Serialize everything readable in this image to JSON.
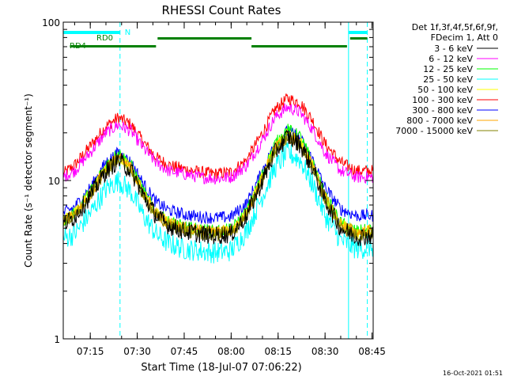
{
  "chart_data": {
    "type": "line",
    "title": "RHESSI Count Rates",
    "xlabel": "Start Time (18-Jul-07 07:06:22)",
    "ylabel": "Count Rate (s⁻¹ detector segment⁻¹)",
    "y_scale": "log",
    "ylim": [
      1,
      100
    ],
    "xlim": [
      "07:06:22",
      "08:45:22"
    ],
    "x_ticks": [
      "07:15",
      "07:30",
      "07:45",
      "08:00",
      "08:15",
      "08:30",
      "08:45"
    ],
    "y_ticks": [
      "1",
      "10",
      "100"
    ],
    "grid": false,
    "legend_position": "right",
    "legend_header": [
      "Det 1f,3f,4f,5f,6f,9f,",
      "FDecim 1, Att 0"
    ],
    "timestamp": "16-Oct-2021 01:51",
    "markers": {
      "night_label": "N",
      "rd0_label": "RD0",
      "rd4_label": "RD4",
      "solid_lines": [
        "07:06:22",
        "08:37:30"
      ],
      "dashed_lines": [
        "07:24:30",
        "08:43:30"
      ],
      "night_segments": [
        [
          "07:06:22",
          "07:24:30"
        ],
        [
          "08:37:30",
          "08:43:30"
        ]
      ],
      "rd0_segments": [
        [
          "07:36:30",
          "08:06:30"
        ],
        [
          "08:38:00",
          "08:43:30"
        ]
      ],
      "rd4_segments": [
        [
          "07:08:30",
          "07:36:00"
        ],
        [
          "08:06:30",
          "08:37:00"
        ]
      ]
    },
    "x": [
      "07:06:22",
      "07:10",
      "07:15",
      "07:20",
      "07:24",
      "07:28",
      "07:32",
      "07:36",
      "07:40",
      "07:45",
      "07:50",
      "07:55",
      "08:00",
      "08:05",
      "08:10",
      "08:14",
      "08:18",
      "08:22",
      "08:26",
      "08:30",
      "08:35",
      "08:40",
      "08:45"
    ],
    "series": [
      {
        "name": "3 - 6 keV",
        "color": "#000000",
        "values": [
          5.3,
          5.9,
          8.0,
          11.5,
          13.5,
          11.5,
          8.0,
          6.0,
          5.2,
          4.8,
          4.6,
          4.5,
          4.6,
          6.0,
          10.0,
          15.0,
          19.0,
          17.0,
          12.0,
          7.5,
          5.0,
          4.4,
          4.5
        ]
      },
      {
        "name": "6 - 12 keV",
        "color": "#ff00ff",
        "values": [
          10.5,
          11.5,
          15.0,
          20.0,
          22.5,
          20.5,
          16.0,
          13.0,
          11.5,
          11.0,
          10.5,
          10.3,
          10.5,
          12.5,
          18.0,
          25.0,
          29.0,
          27.0,
          21.0,
          15.0,
          11.5,
          10.5,
          10.5
        ]
      },
      {
        "name": "12 - 25 keV",
        "color": "#00ff00",
        "values": [
          5.6,
          6.2,
          8.5,
          12.5,
          15.0,
          12.5,
          8.5,
          6.3,
          5.5,
          5.1,
          4.9,
          4.8,
          4.9,
          6.4,
          11.0,
          17.0,
          21.0,
          19.0,
          13.0,
          8.0,
          5.4,
          4.8,
          4.9
        ]
      },
      {
        "name": "25 - 50 keV",
        "color": "#00ffff",
        "values": [
          4.3,
          4.6,
          6.2,
          8.8,
          10.0,
          8.5,
          6.0,
          4.6,
          4.0,
          3.7,
          3.6,
          3.5,
          3.6,
          4.8,
          8.0,
          12.0,
          15.0,
          13.5,
          9.5,
          6.0,
          4.2,
          3.7,
          3.8
        ]
      },
      {
        "name": "50 - 100 keV",
        "color": "#ffff00",
        "values": [
          5.6,
          6.1,
          8.2,
          12.0,
          14.0,
          12.0,
          8.3,
          6.2,
          5.4,
          5.0,
          4.8,
          4.7,
          4.8,
          6.2,
          10.5,
          16.0,
          19.5,
          17.5,
          12.5,
          7.8,
          5.3,
          4.7,
          4.8
        ]
      },
      {
        "name": "100 - 300 keV",
        "color": "#ff0000",
        "values": [
          11.0,
          12.5,
          16.5,
          22.0,
          25.0,
          22.5,
          17.5,
          14.0,
          12.5,
          11.8,
          11.3,
          11.0,
          11.3,
          13.5,
          20.0,
          28.0,
          33.0,
          31.0,
          24.0,
          17.0,
          13.0,
          11.5,
          11.5
        ]
      },
      {
        "name": "300 - 800 keV",
        "color": "#0000ff",
        "values": [
          6.2,
          6.8,
          9.0,
          13.0,
          15.0,
          13.0,
          9.5,
          7.3,
          6.5,
          6.1,
          5.9,
          5.8,
          5.9,
          7.2,
          11.5,
          17.0,
          20.5,
          18.5,
          13.5,
          9.0,
          6.6,
          6.0,
          6.0
        ]
      },
      {
        "name": "800 - 7000 keV",
        "color": "#ffa500",
        "values": [
          5.5,
          6.0,
          8.2,
          12.0,
          14.0,
          12.0,
          8.3,
          6.2,
          5.4,
          5.0,
          4.8,
          4.7,
          4.8,
          6.2,
          10.5,
          16.0,
          19.0,
          17.0,
          12.5,
          7.8,
          5.3,
          4.7,
          4.8
        ]
      },
      {
        "name": "7000 - 15000 keV",
        "color": "#808000",
        "values": [
          5.4,
          5.9,
          8.0,
          11.5,
          13.5,
          11.5,
          8.0,
          6.0,
          5.2,
          4.8,
          4.6,
          4.5,
          4.6,
          6.0,
          10.0,
          15.5,
          18.5,
          16.5,
          12.0,
          7.5,
          5.1,
          4.5,
          4.6
        ]
      }
    ]
  }
}
